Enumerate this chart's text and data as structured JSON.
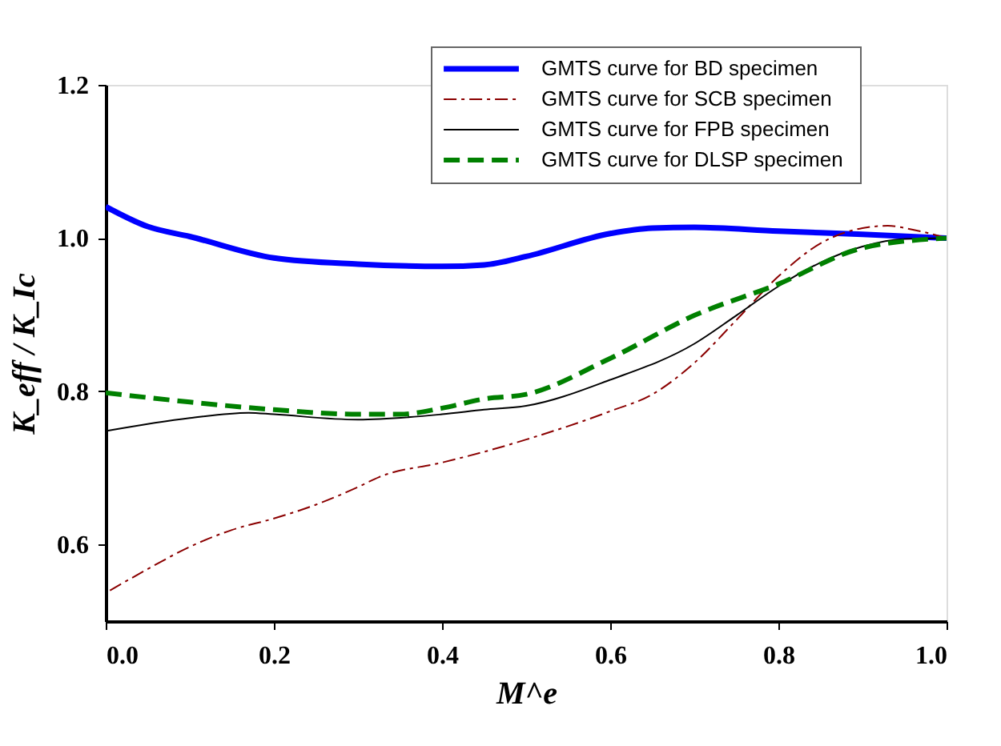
{
  "chart_data": {
    "type": "line",
    "xlabel": "M^e",
    "ylabel": "K_eff / K_Ic",
    "xlim": [
      0,
      1
    ],
    "xticks": [
      {
        "value": 0,
        "label": "0.0"
      },
      0.2,
      0.4,
      0.6,
      0.8,
      {
        "value": 1,
        "label": "1.0"
      }
    ],
    "ylim": [
      0.5,
      1.2
    ],
    "yticks": [
      0.6,
      0.8,
      {
        "value": 1,
        "label": "1.0"
      },
      1.2
    ],
    "grid": false,
    "legend": "top right",
    "marker": "none",
    "series": [
      {
        "name": "GMTS  curve for BD specimen",
        "color": "#0000ff",
        "line_style": "solid",
        "x": [
          0,
          0.05,
          0.1,
          0.2,
          0.3,
          0.4,
          0.45,
          0.5,
          0.6,
          0.65,
          0.7,
          0.8,
          0.9,
          1.0
        ],
        "values": [
          1.041,
          1.015,
          1.002,
          0.974,
          0.966,
          0.963,
          0.965,
          0.976,
          1.006,
          1.013,
          1.014,
          1.009,
          1.005,
          1.0
        ]
      },
      {
        "name": "GMTS  curve for SCB specimen",
        "color": "#8b0000",
        "line_style": "dashdot",
        "x": [
          0.005,
          0.05,
          0.1,
          0.15,
          0.2,
          0.25,
          0.3,
          0.325,
          0.4,
          0.45,
          0.5,
          0.6,
          0.65,
          0.7,
          0.75,
          0.8,
          0.85,
          0.9,
          0.93,
          0.96,
          1.0
        ],
        "values": [
          0.54,
          0.568,
          0.597,
          0.619,
          0.634,
          0.652,
          0.675,
          0.688,
          0.707,
          0.721,
          0.737,
          0.774,
          0.796,
          0.837,
          0.893,
          0.95,
          0.993,
          1.013,
          1.016,
          1.011,
          1.0
        ]
      },
      {
        "name": "GMTS  curve for FPB specimen",
        "color": "#000000",
        "line_style": "solid",
        "x": [
          0,
          0.1,
          0.17,
          0.2,
          0.3,
          0.4,
          0.45,
          0.5,
          0.6,
          0.7,
          0.75,
          0.8,
          0.85,
          0.9,
          0.95,
          1.0
        ],
        "values": [
          0.748,
          0.765,
          0.772,
          0.77,
          0.763,
          0.77,
          0.776,
          0.781,
          0.815,
          0.862,
          0.899,
          0.937,
          0.968,
          0.989,
          0.999,
          1.0
        ]
      },
      {
        "name": "GMTS  curve for DLSP specimen",
        "color": "#008000",
        "line_style": "dashed",
        "x": [
          0,
          0.1,
          0.2,
          0.3,
          0.35,
          0.4,
          0.45,
          0.5,
          0.6,
          0.7,
          0.8,
          0.9,
          1.0
        ],
        "values": [
          0.798,
          0.786,
          0.776,
          0.77,
          0.77,
          0.778,
          0.79,
          0.796,
          0.843,
          0.899,
          0.94,
          0.987,
          1.0
        ]
      }
    ]
  }
}
